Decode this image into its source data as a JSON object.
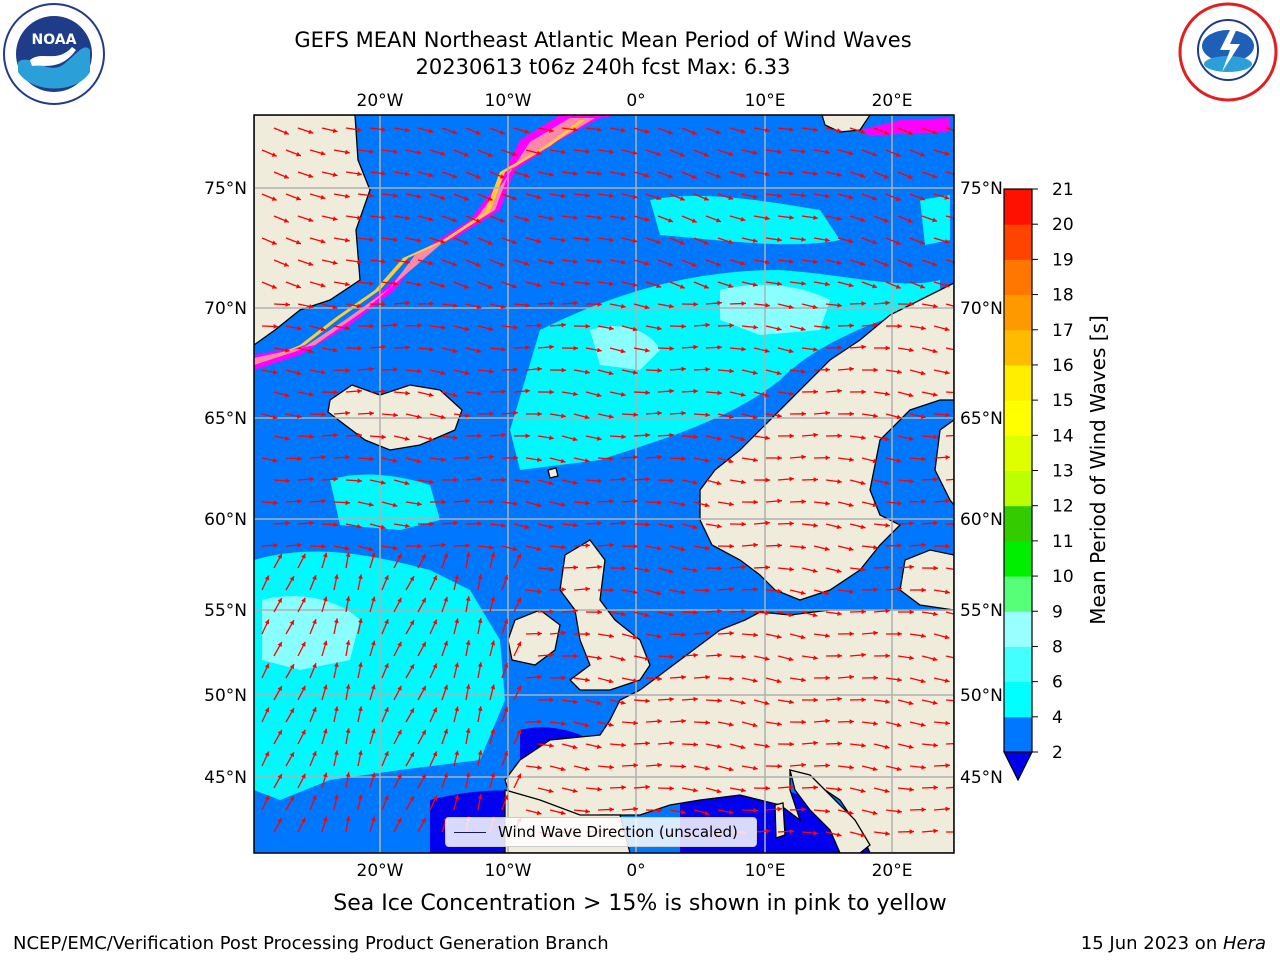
{
  "title": {
    "line1": "GEFS MEAN Northeast Atlantic Mean Period of Wind Waves",
    "line2": "20230613 t06z 240h fcst   Max: 6.33"
  },
  "logos": {
    "left": "noaa-logo",
    "right": "nws-logo"
  },
  "map": {
    "lon_labels_top": [
      "20°W",
      "10°W",
      "0°",
      "10°E",
      "20°E"
    ],
    "lon_labels_bottom": [
      "20°W",
      "10°W",
      "0°",
      "10°E",
      "20°E"
    ],
    "lat_labels_left": [
      "75°N",
      "70°N",
      "65°N",
      "60°N",
      "55°N",
      "50°N",
      "45°N"
    ],
    "lat_labels_right": [
      "75°N",
      "70°N",
      "65°N",
      "60°N",
      "55°N",
      "50°N",
      "45°N"
    ],
    "colors": {
      "land": "#efecdc",
      "ocean_low": "#0077ff",
      "ocean_mid": "#00ffff",
      "ocean_light": "#99ffff",
      "shallow": "#0000ee",
      "ice_pink": "#ff00ff",
      "ice_salmon": "#ff88aa",
      "ice_yellow": "#ffcc33",
      "arrow": "#ff0000",
      "grid": "#b0b0b0"
    },
    "legend_label": "Wind Wave Direction (unscaled)"
  },
  "colorbar": {
    "label": "Mean Period of Wind Waves [s]",
    "ticks": [
      "2",
      "4",
      "6",
      "8",
      "9",
      "10",
      "11",
      "12",
      "13",
      "14",
      "15",
      "16",
      "17",
      "18",
      "19",
      "20",
      "21"
    ],
    "colors": [
      "#0077ff",
      "#00ffff",
      "#44ffff",
      "#99ffff",
      "#55ff77",
      "#00ee00",
      "#33cc00",
      "#bbff00",
      "#ddff00",
      "#ffff00",
      "#ffee00",
      "#ffbb00",
      "#ff9900",
      "#ff7700",
      "#ff4400",
      "#ff1100"
    ],
    "extend_color": "#0000ee"
  },
  "ice_note": "Sea Ice Concentration > 15% is shown in pink to yellow",
  "footer": {
    "left": "NCEP/EMC/Verification Post Processing Product Generation Branch",
    "right_prefix": "15 Jun 2023 on ",
    "right_machine": "Hera"
  }
}
